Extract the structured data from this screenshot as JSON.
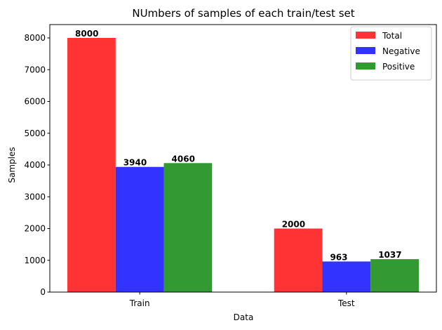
{
  "chart_data": {
    "type": "bar",
    "title": "NUmbers of samples of each train/test set",
    "xlabel": "Data",
    "ylabel": "Samples",
    "categories": [
      "Train",
      "Test"
    ],
    "series": [
      {
        "name": "Total",
        "color": "#ff3333",
        "values": [
          8000,
          2000
        ],
        "labels": [
          "8000",
          "2000"
        ]
      },
      {
        "name": "Negative",
        "color": "#3333ff",
        "values": [
          3940,
          963
        ],
        "labels": [
          "3940",
          "963"
        ]
      },
      {
        "name": "Positive",
        "color": "#339933",
        "values": [
          4060,
          1037
        ],
        "labels": [
          "4060",
          "1037"
        ]
      }
    ],
    "ylim": [
      0,
      8420
    ],
    "yticks": [
      0,
      1000,
      2000,
      3000,
      4000,
      5000,
      6000,
      7000,
      8000
    ],
    "ytick_labels": [
      "0",
      "1000",
      "2000",
      "3000",
      "4000",
      "5000",
      "6000",
      "7000",
      "8000"
    ],
    "grid": false,
    "legend_position": "top-right"
  }
}
